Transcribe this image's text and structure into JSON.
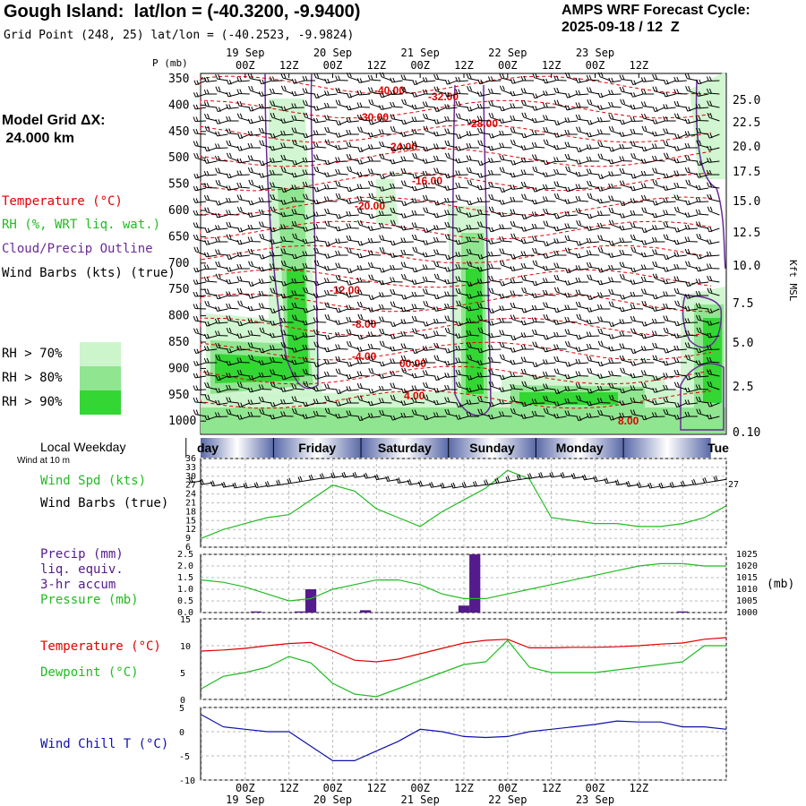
{
  "header": {
    "title": "Gough Island:  lat/lon = (-40.3200, -9.9400)",
    "grid_point": "Grid Point (248, 25) lat/lon = (-40.2523, -9.9824)",
    "cycle_line1": "AMPS WRF Forecast Cycle:",
    "cycle_line2": "2025-09-18 / 12  Z"
  },
  "left_panel": {
    "model_grid_label": "Model Grid ΔX:",
    "model_grid_value": " 24.000 km",
    "legend_temperature": "Temperature (°C)",
    "legend_rh": "RH (%, WRT liq. wat.)",
    "legend_cloud": "Cloud/Precip Outline",
    "legend_barbs": "Wind Barbs (kts) (true)",
    "rh70": "RH > 70%",
    "rh80": "RH > 80%",
    "rh90": "RH > 90%",
    "local_weekday": "Local Weekday",
    "wind_at_10m": "Wind at 10 m",
    "wind_spd": "Wind Spd (kts)",
    "wind_barbs": "Wind Barbs (true)",
    "precip1": "Precip (mm)",
    "precip2": "liq. equiv.",
    "precip3": "3-hr accum",
    "pressure": "Pressure (mb)",
    "temp": "Temperature (°C)",
    "dew": "Dewpoint (°C)",
    "chill": "Wind Chill T (°C)"
  },
  "colors": {
    "temp": "#e00000",
    "rh": "#22cc22",
    "cloud": "#6a2a9a",
    "precip_bar": "#551a8b",
    "chill": "#1010aa",
    "rh70": "#ccf5cc",
    "rh80": "#90e590",
    "rh90": "#33d633"
  },
  "chart_data": [
    {
      "type": "heatmap",
      "name_printed": "",
      "ylabel": "P (mb)",
      "y2label": "Kft MSL",
      "pressure_ticks": [
        "350",
        "400",
        "450",
        "500",
        "550",
        "600",
        "650",
        "700",
        "750",
        "800",
        "850",
        "900",
        "950",
        "1000"
      ],
      "height_ticks": [
        "25.0",
        "22.5",
        "20.0",
        "17.5",
        "15.0",
        "12.5",
        "10.0",
        "7.5",
        "5.0",
        "2.5",
        "0.10"
      ],
      "time_ticks_top": [
        "00Z",
        "12Z",
        "00Z",
        "12Z",
        "00Z",
        "12Z",
        "00Z",
        "12Z",
        "00Z",
        "12Z"
      ],
      "date_labels_top": [
        "19 Sep",
        "20 Sep",
        "21 Sep",
        "22 Sep",
        "23 Sep"
      ],
      "temperature_labels": [
        "-40.00",
        "-32.00",
        "-30.00",
        "-28.00",
        "-24.00",
        "-16.00",
        "-20.00",
        "-12.00",
        "-8.00",
        "-4.00",
        "00.00",
        "4.00",
        "8.00"
      ],
      "hours": [
        0,
        144
      ]
    },
    {
      "type": "line",
      "weekdays": [
        "day",
        "Friday",
        "Saturday",
        "Sunday",
        "Monday",
        "Tue"
      ],
      "y_ticks": [
        "36",
        "33",
        "30",
        "27",
        "24",
        "21",
        "18",
        "15",
        "12",
        "9",
        "6"
      ],
      "ylim": [
        6,
        36
      ],
      "series": [
        {
          "values_x": [
            0,
            6,
            12,
            18,
            24,
            30,
            36,
            42,
            48,
            54,
            60,
            66,
            72,
            78,
            84,
            90,
            96,
            102,
            108,
            114,
            120,
            126,
            132,
            138,
            144
          ],
          "values": [
            9,
            12,
            14,
            16,
            17,
            22,
            27,
            25,
            19,
            16,
            13,
            18,
            22,
            26,
            32,
            29,
            16,
            15,
            14,
            14,
            13,
            13,
            14,
            16,
            20
          ]
        }
      ],
      "series_wind_right_mark": "27"
    },
    {
      "type": "bar",
      "y_ticks": [
        "2.5",
        "2.0",
        "1.5",
        "1.0",
        "0.5",
        "0.0"
      ],
      "ylim": [
        0,
        2.5
      ],
      "precip_x": [
        15,
        27,
        30,
        45,
        72,
        75,
        132
      ],
      "precip_values": [
        0.05,
        0.05,
        1.0,
        0.1,
        0.3,
        2.5,
        0.05
      ],
      "y2_ticks": [
        "1025",
        "1020",
        "1015",
        "1010",
        "1005",
        "1000"
      ],
      "y2label": "(mb)",
      "y2lim": [
        1000,
        1025
      ],
      "pressure_x": [
        0,
        6,
        12,
        18,
        24,
        30,
        36,
        42,
        48,
        54,
        60,
        66,
        72,
        78,
        84,
        90,
        96,
        102,
        108,
        114,
        120,
        126,
        132,
        138,
        144
      ],
      "pressure_values": [
        1014,
        1013,
        1011,
        1008,
        1005,
        1006,
        1010,
        1012,
        1014,
        1014,
        1012,
        1008,
        1006,
        1006,
        1008,
        1010,
        1012,
        1014,
        1016,
        1018,
        1020,
        1021,
        1021,
        1020,
        1020
      ]
    },
    {
      "type": "line",
      "y_ticks": [
        "15",
        "10",
        "5",
        "0"
      ],
      "ylim": [
        0,
        15
      ],
      "x": [
        0,
        6,
        12,
        18,
        24,
        30,
        36,
        42,
        48,
        54,
        60,
        66,
        72,
        78,
        84,
        90,
        96,
        102,
        108,
        114,
        120,
        126,
        132,
        138,
        144
      ],
      "temperature": [
        9,
        9.2,
        9.5,
        10,
        10.4,
        10.6,
        9,
        7.3,
        7,
        7.5,
        8.5,
        9.5,
        10.5,
        11,
        11.2,
        9.6,
        9.6,
        9.7,
        9.7,
        9.8,
        10,
        10.3,
        10.5,
        11.2,
        11.5
      ],
      "dewpoint": [
        2,
        4.3,
        5,
        6,
        8,
        6.8,
        3,
        1,
        0.5,
        2,
        3.5,
        5,
        6.5,
        7,
        11,
        6,
        5,
        5,
        5,
        5.5,
        6,
        6.5,
        7,
        10,
        10
      ]
    },
    {
      "type": "line",
      "y_ticks": [
        "5",
        "0",
        "-5",
        "-10"
      ],
      "ylim": [
        -10,
        5
      ],
      "x": [
        0,
        6,
        12,
        18,
        24,
        30,
        36,
        42,
        48,
        54,
        60,
        66,
        72,
        78,
        84,
        90,
        96,
        102,
        108,
        114,
        120,
        126,
        132,
        138,
        144
      ],
      "values": [
        3.5,
        1,
        0.5,
        0,
        0,
        -3,
        -6,
        -6,
        -4,
        -2,
        0.5,
        0,
        -1,
        -1.2,
        -1,
        0,
        0.5,
        1,
        1.5,
        2.2,
        2,
        2,
        1,
        1,
        0.5
      ]
    }
  ],
  "bottom_axis": {
    "time_ticks": [
      "00Z",
      "12Z",
      "00Z",
      "12Z",
      "00Z",
      "12Z",
      "00Z",
      "12Z",
      "00Z",
      "12Z"
    ],
    "date_labels": [
      "19 Sep",
      "20 Sep",
      "21 Sep",
      "22 Sep",
      "23 Sep"
    ]
  }
}
